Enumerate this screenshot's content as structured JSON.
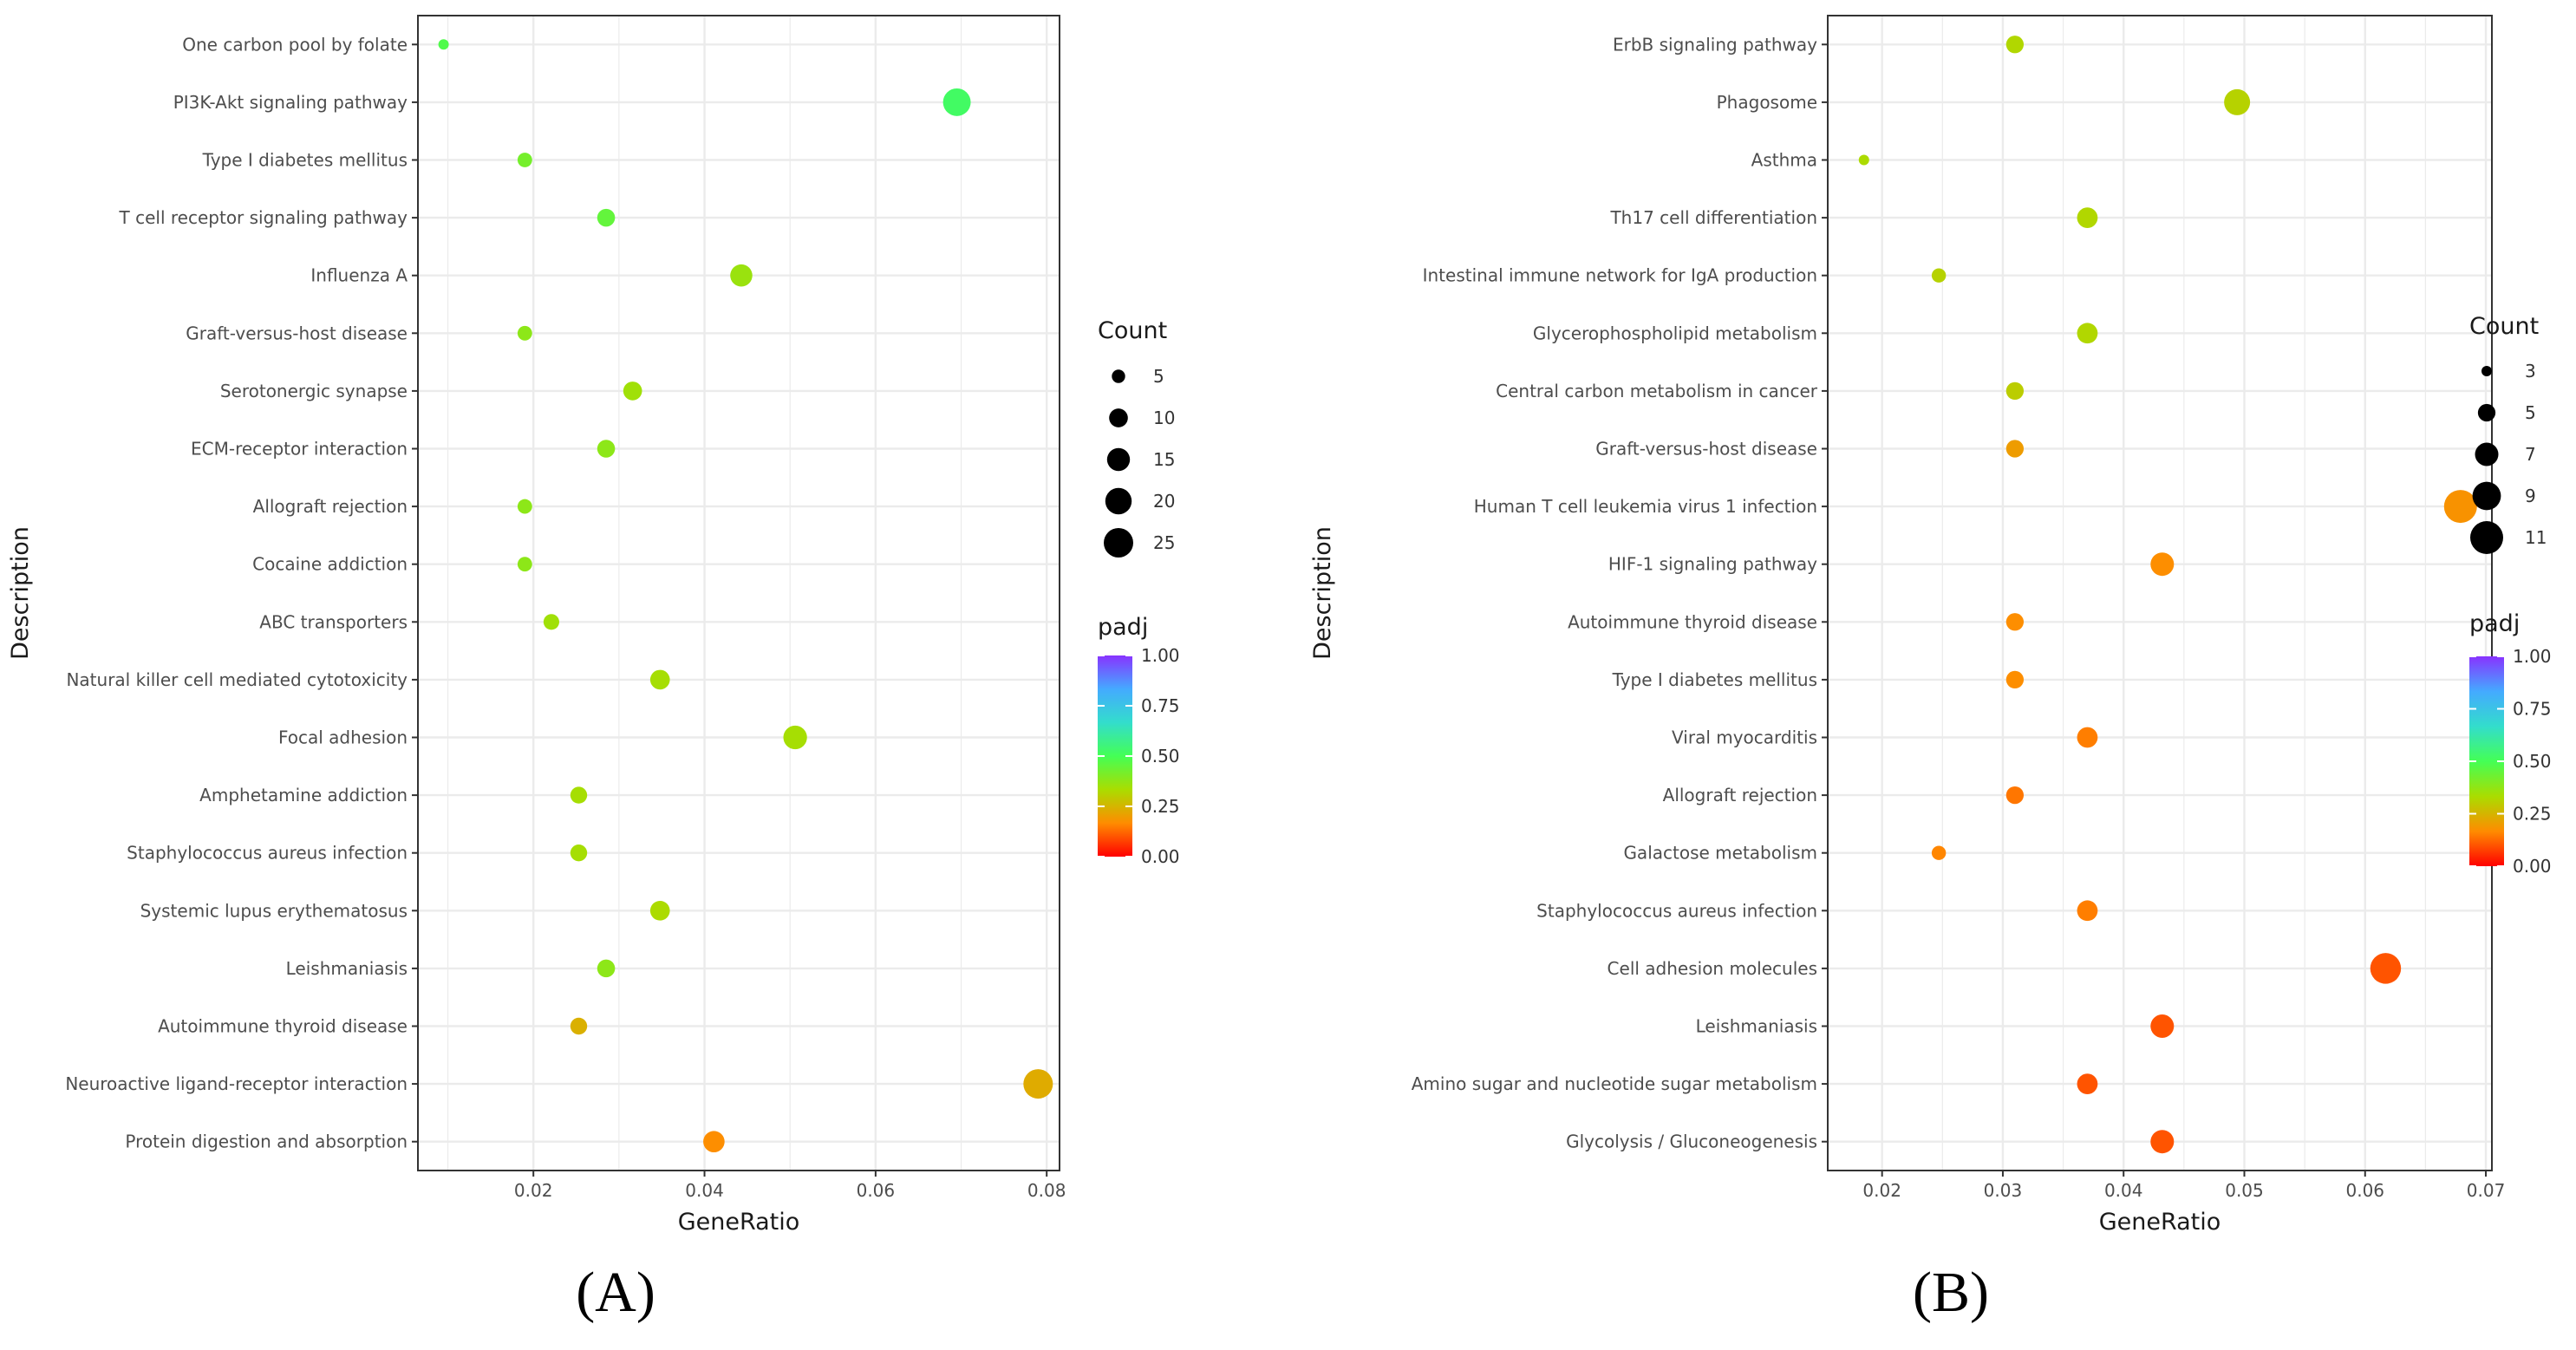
{
  "colors": {
    "grid": "#ebebeb",
    "panel_border": "#333333",
    "gradient": [
      "#ff0000",
      "#ff8c00",
      "#aadd00",
      "#44ff55",
      "#33ddcc",
      "#44aaff",
      "#8833ff"
    ]
  },
  "chart_data": [
    {
      "panel": "A",
      "panel_label": "(A)",
      "type": "scatter",
      "xlabel": "GeneRatio",
      "ylabel": "Description",
      "xlim": [
        0.0065,
        0.0815
      ],
      "xticks": [
        0.02,
        0.04,
        0.06,
        0.08
      ],
      "xtick_labels": [
        "0.02",
        "0.04",
        "0.06",
        "0.08"
      ],
      "size_legend": {
        "title": "Count",
        "values": [
          5,
          10,
          15,
          20,
          25
        ],
        "labels": [
          "5",
          "10",
          "15",
          "20",
          "25"
        ]
      },
      "color_legend": {
        "title": "padj",
        "min": 0,
        "max": 1,
        "ticks": [
          1.0,
          0.75,
          0.5,
          0.25,
          0.0
        ],
        "labels": [
          "1.00",
          "0.75",
          "0.50",
          "0.25",
          "0.00"
        ]
      },
      "categories": [
        "One carbon pool by folate",
        "PI3K-Akt signaling pathway",
        "Type I diabetes mellitus",
        "T cell receptor signaling pathway",
        "Influenza A",
        "Graft-versus-host disease",
        "Serotonergic synapse",
        "ECM-receptor interaction",
        "Allograft rejection",
        "Cocaine addiction",
        "ABC transporters",
        "Natural killer cell mediated cytotoxicity",
        "Focal adhesion",
        "Amphetamine addiction",
        "Staphylococcus aureus infection",
        "Systemic lupus erythematosus",
        "Leishmaniasis",
        "Autoimmune thyroid disease",
        "Neuroactive ligand-receptor interaction",
        "Protein digestion and absorption"
      ],
      "gene_ratio": [
        0.0095,
        0.0695,
        0.019,
        0.0285,
        0.0443,
        0.019,
        0.0316,
        0.0285,
        0.019,
        0.019,
        0.0221,
        0.0348,
        0.0506,
        0.0253,
        0.0253,
        0.0348,
        0.0285,
        0.0253,
        0.079,
        0.0411
      ],
      "count": [
        3,
        22,
        6,
        9,
        14,
        6,
        10,
        9,
        6,
        6,
        7,
        11,
        16,
        8,
        8,
        11,
        9,
        8,
        25,
        13
      ],
      "padj": [
        0.48,
        0.52,
        0.42,
        0.45,
        0.36,
        0.38,
        0.35,
        0.38,
        0.38,
        0.38,
        0.35,
        0.34,
        0.34,
        0.34,
        0.34,
        0.33,
        0.38,
        0.24,
        0.23,
        0.17
      ]
    },
    {
      "panel": "B",
      "panel_label": "(B)",
      "type": "scatter",
      "xlabel": "GeneRatio",
      "ylabel": "Description",
      "xlim": [
        0.0155,
        0.0705
      ],
      "xticks": [
        0.02,
        0.03,
        0.04,
        0.05,
        0.06,
        0.07
      ],
      "xtick_labels": [
        "0.02",
        "0.03",
        "0.04",
        "0.05",
        "0.06",
        "0.07"
      ],
      "size_legend": {
        "title": "Count",
        "values": [
          3,
          5,
          7,
          9,
          11
        ],
        "labels": [
          "3",
          "5",
          "7",
          "9",
          "11"
        ]
      },
      "color_legend": {
        "title": "padj",
        "min": 0,
        "max": 1,
        "ticks": [
          1.0,
          0.75,
          0.5,
          0.25,
          0.0
        ],
        "labels": [
          "1.00",
          "0.75",
          "0.50",
          "0.25",
          "0.00"
        ]
      },
      "categories": [
        "ErbB signaling pathway",
        "Phagosome",
        "Asthma",
        "Th17 cell differentiation",
        "Intestinal immune network for IgA production",
        "Glycerophospholipid metabolism",
        "Central carbon metabolism in cancer",
        "Graft-versus-host disease",
        "Human T cell leukemia virus 1 infection",
        "HIF-1 signaling pathway",
        "Autoimmune thyroid disease",
        "Type I diabetes mellitus",
        "Viral myocarditis",
        "Allograft rejection",
        "Galactose metabolism",
        "Staphylococcus aureus infection",
        "Cell adhesion molecules",
        "Leishmaniasis",
        "Amino sugar and nucleotide sugar metabolism",
        "Glycolysis / Gluconeogenesis"
      ],
      "gene_ratio": [
        0.031,
        0.0494,
        0.0185,
        0.037,
        0.0247,
        0.037,
        0.031,
        0.031,
        0.0679,
        0.0432,
        0.031,
        0.031,
        0.037,
        0.031,
        0.0247,
        0.037,
        0.0617,
        0.0432,
        0.037,
        0.0432
      ],
      "count": [
        5,
        8,
        3,
        6,
        4,
        6,
        5,
        5,
        11,
        7,
        5,
        5,
        6,
        5,
        4,
        6,
        10,
        7,
        6,
        7
      ],
      "padj": [
        0.32,
        0.31,
        0.33,
        0.32,
        0.31,
        0.32,
        0.3,
        0.2,
        0.18,
        0.17,
        0.17,
        0.17,
        0.15,
        0.14,
        0.16,
        0.15,
        0.1,
        0.1,
        0.1,
        0.1
      ]
    }
  ]
}
